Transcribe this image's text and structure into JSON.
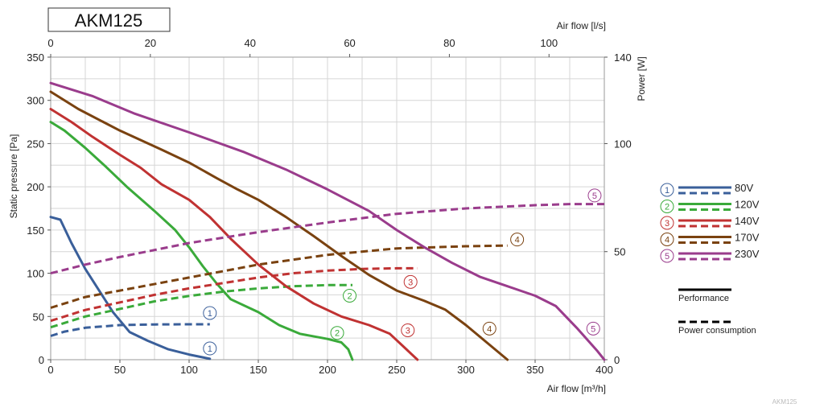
{
  "title": "AKM125",
  "watermark": "AKM125",
  "chart_data": {
    "type": "line",
    "x_bottom": {
      "label": "Air flow [m³/h]",
      "range": [
        0,
        400
      ],
      "ticks": [
        0,
        50,
        100,
        150,
        200,
        250,
        300,
        350,
        400
      ]
    },
    "x_top": {
      "label": "Air flow [l/s]",
      "range": [
        0,
        111.1
      ],
      "ticks": [
        0,
        20,
        40,
        60,
        80,
        100
      ]
    },
    "y_left": {
      "label": "Static pressure [Pa]",
      "range": [
        0,
        350
      ],
      "ticks": [
        0,
        50,
        100,
        150,
        200,
        250,
        300,
        350
      ]
    },
    "y_right": {
      "label": "Power [W]",
      "range": [
        0,
        140
      ],
      "ticks": [
        0,
        50,
        100,
        140
      ]
    },
    "grid": true,
    "legend_position": "right",
    "series": [
      {
        "id": "1",
        "name": "80V",
        "color": "#3a5f9a",
        "performance": [
          [
            0,
            165
          ],
          [
            7,
            162
          ],
          [
            15,
            135
          ],
          [
            25,
            105
          ],
          [
            35,
            80
          ],
          [
            45,
            55
          ],
          [
            57,
            32
          ],
          [
            70,
            22
          ],
          [
            85,
            12
          ],
          [
            100,
            6
          ],
          [
            115,
            1
          ]
        ],
        "power": [
          [
            0,
            11
          ],
          [
            10,
            13
          ],
          [
            25,
            14.8
          ],
          [
            50,
            16
          ],
          [
            75,
            16.3
          ],
          [
            100,
            16.4
          ],
          [
            115,
            16.4
          ]
        ]
      },
      {
        "id": "2",
        "name": "120V",
        "color": "#3aaa3a",
        "performance": [
          [
            0,
            275
          ],
          [
            10,
            265
          ],
          [
            25,
            245
          ],
          [
            40,
            223
          ],
          [
            55,
            200
          ],
          [
            75,
            172
          ],
          [
            90,
            150
          ],
          [
            100,
            130
          ],
          [
            110,
            108
          ],
          [
            120,
            88
          ],
          [
            130,
            70
          ],
          [
            150,
            55
          ],
          [
            165,
            40
          ],
          [
            180,
            30
          ],
          [
            200,
            24
          ],
          [
            210,
            20
          ],
          [
            215,
            12
          ],
          [
            218,
            0
          ]
        ],
        "power": [
          [
            0,
            15
          ],
          [
            25,
            20
          ],
          [
            50,
            23.5
          ],
          [
            75,
            27
          ],
          [
            100,
            29.5
          ],
          [
            125,
            31.5
          ],
          [
            150,
            33
          ],
          [
            175,
            34
          ],
          [
            200,
            34.5
          ],
          [
            218,
            34.5
          ]
        ]
      },
      {
        "id": "3",
        "name": "140V",
        "color": "#c03232",
        "performance": [
          [
            0,
            290
          ],
          [
            15,
            275
          ],
          [
            30,
            258
          ],
          [
            50,
            237
          ],
          [
            65,
            222
          ],
          [
            80,
            203
          ],
          [
            100,
            185
          ],
          [
            115,
            165
          ],
          [
            130,
            140
          ],
          [
            150,
            110
          ],
          [
            170,
            85
          ],
          [
            190,
            65
          ],
          [
            210,
            50
          ],
          [
            230,
            40
          ],
          [
            245,
            30
          ],
          [
            255,
            15
          ],
          [
            265,
            0
          ]
        ],
        "power": [
          [
            0,
            18
          ],
          [
            25,
            23
          ],
          [
            50,
            26.5
          ],
          [
            75,
            30
          ],
          [
            100,
            33
          ],
          [
            125,
            35.5
          ],
          [
            150,
            38
          ],
          [
            175,
            40
          ],
          [
            200,
            41.2
          ],
          [
            225,
            42
          ],
          [
            250,
            42.3
          ],
          [
            265,
            42.3
          ]
        ]
      },
      {
        "id": "4",
        "name": "170V",
        "color": "#7a4210",
        "performance": [
          [
            0,
            310
          ],
          [
            20,
            290
          ],
          [
            50,
            265
          ],
          [
            80,
            243
          ],
          [
            100,
            228
          ],
          [
            120,
            210
          ],
          [
            135,
            197
          ],
          [
            150,
            185
          ],
          [
            170,
            165
          ],
          [
            190,
            143
          ],
          [
            210,
            120
          ],
          [
            230,
            98
          ],
          [
            250,
            80
          ],
          [
            270,
            68
          ],
          [
            285,
            58
          ],
          [
            300,
            40
          ],
          [
            315,
            20
          ],
          [
            330,
            0
          ]
        ],
        "power": [
          [
            0,
            24
          ],
          [
            25,
            29
          ],
          [
            50,
            32
          ],
          [
            100,
            38
          ],
          [
            150,
            44
          ],
          [
            200,
            48.5
          ],
          [
            250,
            51.5
          ],
          [
            300,
            52.5
          ],
          [
            330,
            52.8
          ]
        ]
      },
      {
        "id": "5",
        "name": "230V",
        "color": "#9a3c8c",
        "performance": [
          [
            0,
            320
          ],
          [
            30,
            305
          ],
          [
            60,
            285
          ],
          [
            100,
            263
          ],
          [
            140,
            240
          ],
          [
            170,
            220
          ],
          [
            200,
            197
          ],
          [
            230,
            172
          ],
          [
            250,
            150
          ],
          [
            270,
            130
          ],
          [
            290,
            112
          ],
          [
            310,
            96
          ],
          [
            330,
            85
          ],
          [
            350,
            74
          ],
          [
            365,
            62
          ],
          [
            380,
            37
          ],
          [
            395,
            10
          ],
          [
            400,
            0
          ]
        ],
        "power": [
          [
            0,
            40
          ],
          [
            25,
            44
          ],
          [
            50,
            47.5
          ],
          [
            100,
            54
          ],
          [
            150,
            59
          ],
          [
            200,
            63.5
          ],
          [
            250,
            67.5
          ],
          [
            300,
            70
          ],
          [
            350,
            71.5
          ],
          [
            375,
            72
          ],
          [
            400,
            72
          ]
        ]
      }
    ],
    "markers": [
      {
        "label": "1",
        "series": "1",
        "x": 115,
        "y": 13
      },
      {
        "label": "1",
        "series": "1",
        "x": 115,
        "y": 54
      },
      {
        "label": "2",
        "series": "2",
        "x": 207,
        "y": 31
      },
      {
        "label": "2",
        "series": "2",
        "x": 216,
        "y": 74
      },
      {
        "label": "3",
        "series": "3",
        "x": 258,
        "y": 34
      },
      {
        "label": "3",
        "series": "3",
        "x": 260,
        "y": 90
      },
      {
        "label": "4",
        "series": "4",
        "x": 317,
        "y": 36
      },
      {
        "label": "4",
        "series": "4",
        "x": 337,
        "y": 139
      },
      {
        "label": "5",
        "series": "5",
        "x": 392,
        "y": 36
      },
      {
        "label": "5",
        "series": "5",
        "x": 393,
        "y": 190
      }
    ],
    "line_styles": {
      "performance": "Performance",
      "power": "Power consumption"
    }
  }
}
